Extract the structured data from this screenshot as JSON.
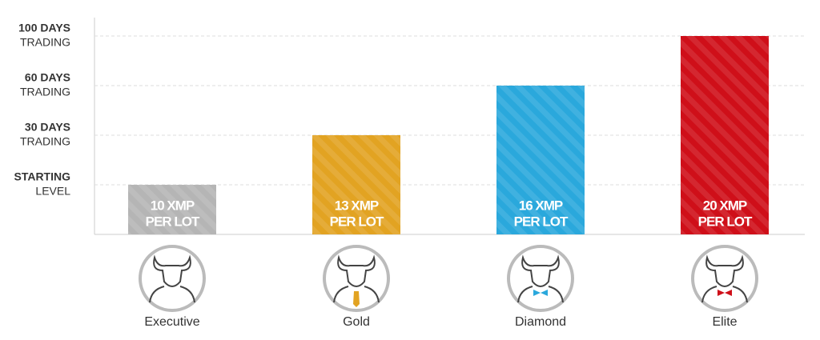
{
  "chart_data": {
    "type": "bar",
    "categories": [
      "Executive",
      "Gold",
      "Diamond",
      "Elite"
    ],
    "values": [
      1,
      2,
      3,
      4
    ],
    "colors": [
      "#b5b5b5",
      "#e2a322",
      "#2aa8dc",
      "#cf0f19"
    ],
    "bar_labels": [
      [
        "10 XMP",
        "PER LOT"
      ],
      [
        "13 XMP",
        "PER LOT"
      ],
      [
        "16 XMP",
        "PER LOT"
      ],
      [
        "20 XMP",
        "PER LOT"
      ]
    ],
    "ylim": [
      0,
      4
    ],
    "yticks": [
      {
        "value": 1,
        "label": [
          "STARTING",
          "LEVEL"
        ]
      },
      {
        "value": 2,
        "label": [
          "30 DAYS",
          "TRADING"
        ]
      },
      {
        "value": 3,
        "label": [
          "60 DAYS",
          "TRADING"
        ]
      },
      {
        "value": 4,
        "label": [
          "100 DAYS",
          "TRADING"
        ]
      }
    ],
    "grid": true
  }
}
